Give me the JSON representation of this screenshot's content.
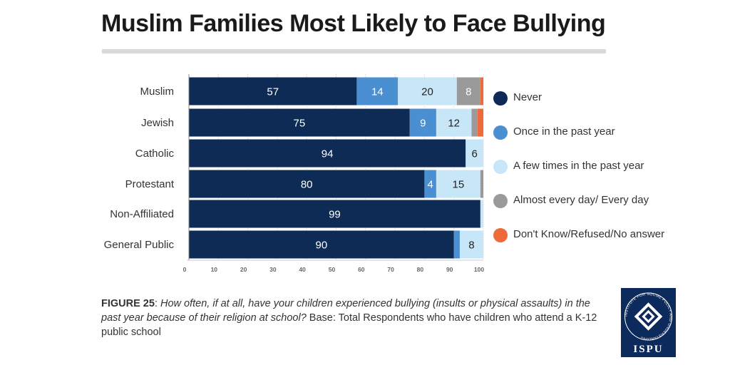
{
  "title": "Muslim Families Most Likely to Face Bullying",
  "colors": {
    "never": "#0d2b55",
    "once": "#4a8fd1",
    "few": "#c7e6f8",
    "daily": "#9a9a9a",
    "dontknow": "#ef6a3a"
  },
  "chart_data": {
    "type": "bar",
    "orientation": "horizontal",
    "stacked": true,
    "categories": [
      "Muslim",
      "Jewish",
      "Catholic",
      "Protestant",
      "Non-Affiliated",
      "General Public"
    ],
    "series": [
      {
        "name": "Never",
        "color_key": "never",
        "values": [
          57,
          75,
          94,
          80,
          99,
          90
        ]
      },
      {
        "name": "Once in the past year",
        "color_key": "once",
        "values": [
          14,
          9,
          0,
          4,
          0,
          2
        ]
      },
      {
        "name": "A few times in the past year",
        "color_key": "few",
        "values": [
          20,
          12,
          6,
          15,
          1,
          8
        ]
      },
      {
        "name": "Almost every day/ Every day",
        "color_key": "daily",
        "values": [
          8,
          2,
          0,
          1,
          0,
          0
        ]
      },
      {
        "name": "Don't Know/Refused/No answer",
        "color_key": "dontknow",
        "values": [
          1,
          2,
          0,
          0,
          0,
          0
        ]
      }
    ],
    "data_labels": [
      [
        "57",
        "14",
        "20",
        "8",
        ""
      ],
      [
        "75",
        "9",
        "12",
        "",
        ""
      ],
      [
        "94",
        "",
        "6",
        "",
        ""
      ],
      [
        "80",
        "4",
        "15",
        "",
        ""
      ],
      [
        "99",
        "",
        "",
        "",
        ""
      ],
      [
        "90",
        "",
        "8",
        "",
        ""
      ]
    ],
    "xlim": [
      0,
      100
    ],
    "xticks": [
      "0",
      "10",
      "20",
      "30",
      "40",
      "50",
      "60",
      "70",
      "80",
      "90",
      "100"
    ],
    "legend_position": "right"
  },
  "caption": {
    "figure": "FIGURE 25",
    "sep": ": ",
    "question": "How often, if at all, have your children experienced bullying (insults or physical assaults) in the past year because of their religion at school?",
    "base": "  Base: Total Respondents who have children who attend a K-12 public school"
  },
  "logo": {
    "text": "ISPU",
    "ring_text": "INSTITUTE FOR SOCIAL POLICY AND UNDERSTANDING"
  }
}
